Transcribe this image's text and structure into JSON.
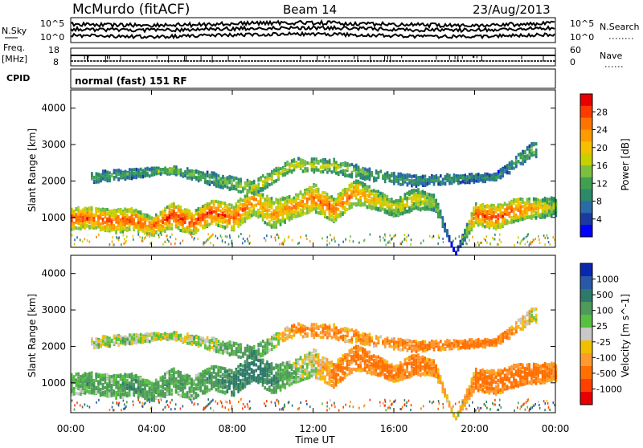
{
  "header": {
    "title": "McMurdo (fitACF)",
    "beam": "Beam 14",
    "date": "23/Aug/2013"
  },
  "noise_panel": {
    "left_label": "N.Sky",
    "right_label": "N.Search",
    "left_ticks": [
      "10^5",
      "10^0"
    ],
    "right_ticks": [
      "10^5",
      "10^0"
    ]
  },
  "freq_panel": {
    "left_label_1": "Freq.",
    "left_label_2": "[MHz]",
    "right_label": "Nave",
    "left_ticks": [
      "18",
      "8"
    ],
    "right_ticks": [
      "60",
      "0"
    ]
  },
  "cpid": {
    "label": "CPID",
    "text": "normal (fast) 151 RF"
  },
  "x_ticks": [
    "00:00",
    "04:00",
    "08:00",
    "12:00",
    "16:00",
    "20:00",
    "00:00"
  ],
  "xlabel": "Time UT",
  "chart_data": [
    {
      "type": "heatmap",
      "title": "",
      "xlabel": "Time UT",
      "ylabel": "Slant Range [km]",
      "x_range_hours": [
        0,
        24
      ],
      "ylim": [
        180,
        4500
      ],
      "y_ticks": [
        "4000",
        "3000",
        "2000",
        "1000"
      ],
      "y_tick_values": [
        4000,
        3000,
        2000,
        1000
      ],
      "colorbar_label": "Power [dB]",
      "colorbar_ticks": [
        "28",
        "24",
        "20",
        "16",
        "12",
        "8",
        "4"
      ],
      "colorbar_colors": [
        "#e80000",
        "#ff3a00",
        "#ff7400",
        "#ff9a00",
        "#f4c000",
        "#c8d000",
        "#7cc040",
        "#3fa050",
        "#2a8a6a",
        "#2a6aa8",
        "#1a3aa0",
        "#0000ff"
      ],
      "bands": [
        {
          "name": "main",
          "t": [
            0,
            1,
            2,
            3,
            4,
            5,
            6,
            7,
            8,
            9,
            10,
            11,
            12,
            13,
            14,
            15,
            16,
            17,
            18,
            19,
            20,
            21,
            22,
            23,
            24
          ],
          "center_km": [
            950,
            1000,
            880,
            950,
            750,
            1050,
            850,
            1150,
            980,
            1450,
            1100,
            1300,
            1550,
            1200,
            1700,
            1500,
            1250,
            1500,
            1400,
            0,
            1100,
            1000,
            1200,
            1250,
            1300
          ],
          "width_km": [
            600,
            550,
            650,
            600,
            500,
            700,
            600,
            650,
            700,
            750,
            800,
            600,
            750,
            650,
            700,
            550,
            450,
            600,
            400,
            0,
            600,
            650,
            600,
            550,
            500
          ],
          "power_db": [
            28,
            27,
            26,
            27,
            25,
            29,
            27,
            29,
            26,
            24,
            22,
            24,
            25,
            26,
            24,
            20,
            18,
            18,
            16,
            0,
            27,
            27,
            26,
            22,
            14
          ]
        },
        {
          "name": "upper",
          "t": [
            1,
            3,
            5,
            7,
            9,
            11,
            13,
            15,
            17,
            21,
            23
          ],
          "center_km": [
            2100,
            2200,
            2300,
            2050,
            1800,
            2450,
            2400,
            2150,
            2000,
            2100,
            2900
          ],
          "width_km": [
            300,
            250,
            200,
            350,
            400,
            350,
            400,
            300,
            300,
            200,
            500
          ],
          "power_db": [
            12,
            10,
            14,
            12,
            16,
            18,
            16,
            12,
            10,
            8,
            12
          ]
        }
      ]
    },
    {
      "type": "heatmap",
      "title": "",
      "xlabel": "Time UT",
      "ylabel": "Slant Range [km]",
      "x_range_hours": [
        0,
        24
      ],
      "ylim": [
        180,
        4500
      ],
      "y_ticks": [
        "4000",
        "3000",
        "2000",
        "1000"
      ],
      "y_tick_values": [
        4000,
        3000,
        2000,
        1000
      ],
      "colorbar_label": "Velocity [m s^-1]",
      "colorbar_ticks": [
        "1000",
        "500",
        "100",
        "25",
        "-25",
        "-100",
        "-500",
        "-1000"
      ],
      "colorbar_colors": [
        "#0828b0",
        "#2858a8",
        "#2e7a6a",
        "#4e9a5a",
        "#56c040",
        "#c8c8c8",
        "#f0c000",
        "#ff9a30",
        "#ff7000",
        "#ff4000",
        "#e80000"
      ],
      "bands": [
        {
          "name": "main",
          "t": [
            0,
            1,
            2,
            3,
            4,
            5,
            6,
            7,
            8,
            9,
            10,
            11,
            12,
            13,
            14,
            15,
            16,
            17,
            18,
            19,
            20,
            21,
            22,
            23,
            24
          ],
          "center_km": [
            950,
            1000,
            880,
            950,
            750,
            1050,
            850,
            1150,
            980,
            1450,
            1100,
            1300,
            1550,
            1200,
            1700,
            1500,
            1250,
            1500,
            1400,
            0,
            1100,
            1000,
            1200,
            1250,
            1300
          ],
          "width_km": [
            600,
            550,
            650,
            600,
            500,
            700,
            600,
            650,
            700,
            750,
            800,
            600,
            750,
            650,
            700,
            550,
            450,
            600,
            400,
            0,
            600,
            650,
            600,
            550,
            500
          ],
          "velocity": [
            50,
            120,
            80,
            150,
            100,
            120,
            80,
            150,
            200,
            300,
            150,
            50,
            -20,
            -150,
            -150,
            -200,
            -150,
            -200,
            -150,
            0,
            -200,
            -180,
            -200,
            -200,
            -150
          ]
        },
        {
          "name": "upper",
          "t": [
            1,
            3,
            5,
            7,
            9,
            11,
            13,
            15,
            17,
            21,
            23
          ],
          "center_km": [
            2100,
            2200,
            2300,
            2050,
            1800,
            2450,
            2400,
            2150,
            2000,
            2100,
            2900
          ],
          "width_km": [
            300,
            250,
            200,
            350,
            400,
            350,
            400,
            300,
            300,
            200,
            500
          ],
          "velocity": [
            10,
            20,
            -10,
            30,
            150,
            -120,
            -150,
            -100,
            -150,
            -200,
            0
          ]
        }
      ]
    }
  ]
}
